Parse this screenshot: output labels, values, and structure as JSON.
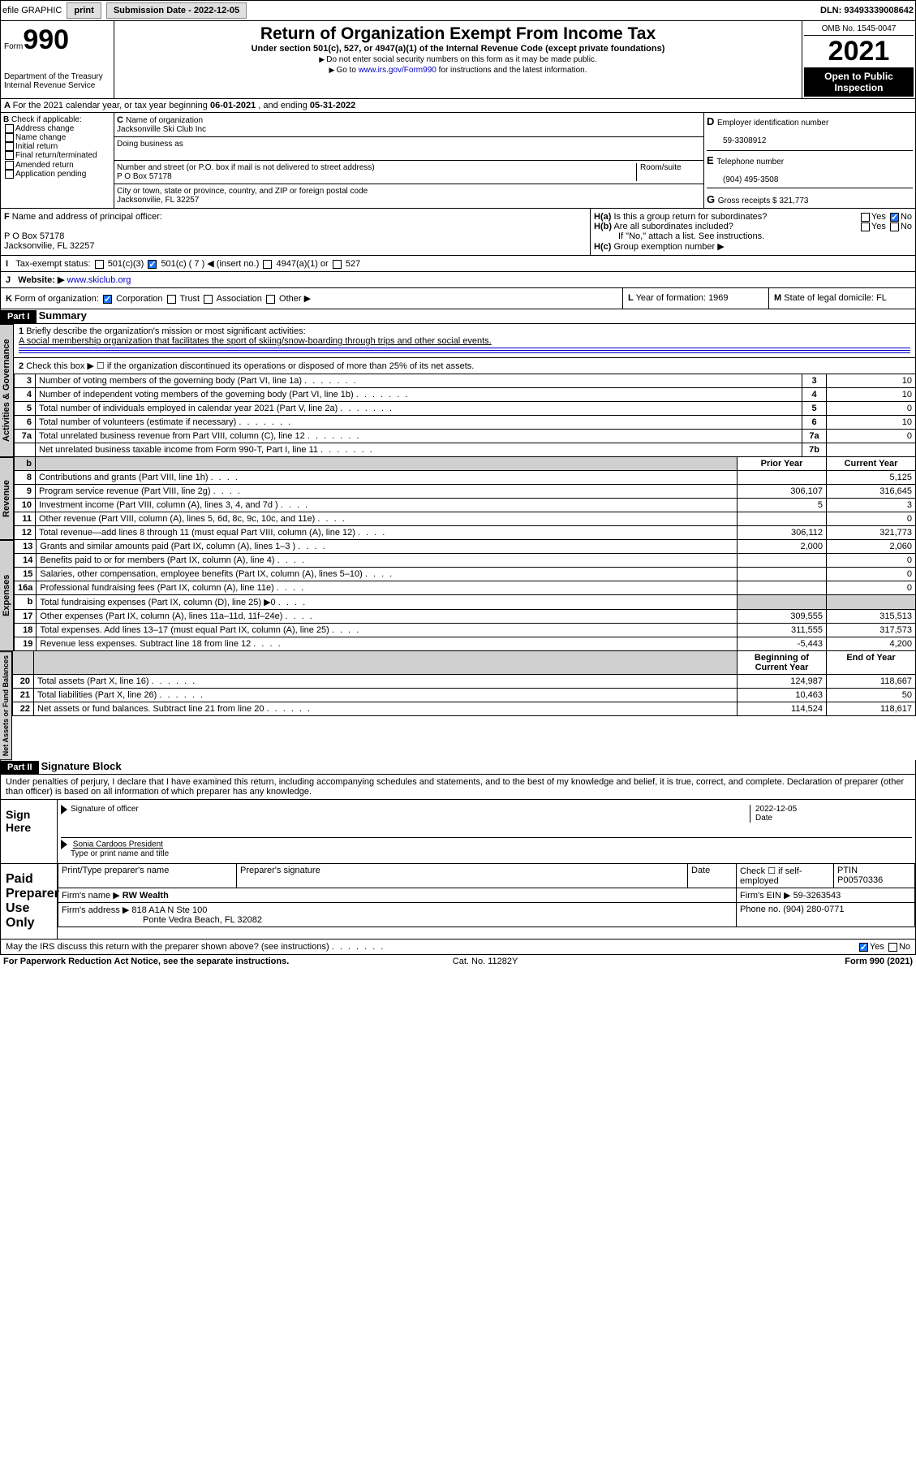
{
  "topbar": {
    "efile": "efile GRAPHIC",
    "print": "print",
    "subdate_label": "Submission Date - ",
    "subdate": "2022-12-05",
    "dln_label": "DLN: ",
    "dln": "93493339008642"
  },
  "header": {
    "form_prefix": "Form",
    "form_num": "990",
    "title": "Return of Organization Exempt From Income Tax",
    "subtitle": "Under section 501(c), 527, or 4947(a)(1) of the Internal Revenue Code (except private foundations)",
    "note1": "Do not enter social security numbers on this form as it may be made public.",
    "note2a": "Go to ",
    "note2_link": "www.irs.gov/Form990",
    "note2b": " for instructions and the latest information.",
    "dept": "Department of the Treasury Internal Revenue Service",
    "omb": "OMB No. 1545-0047",
    "year": "2021",
    "open": "Open to Public Inspection"
  },
  "A": {
    "text_a": "For the 2021 calendar year, or tax year beginning ",
    "begin": "06-01-2021",
    "text_b": " , and ending ",
    "end": "05-31-2022"
  },
  "B": {
    "label": "Check if applicable:",
    "items": [
      "Address change",
      "Name change",
      "Initial return",
      "Final return/terminated",
      "Amended return",
      "Application pending"
    ]
  },
  "C": {
    "name_label": "Name of organization",
    "name": "Jacksonville Ski Club Inc",
    "dba_label": "Doing business as",
    "dba": "",
    "street_label": "Number and street (or P.O. box if mail is not delivered to street address)",
    "room_label": "Room/suite",
    "street": "P O Box 57178",
    "city_label": "City or town, state or province, country, and ZIP or foreign postal code",
    "city": "Jacksonvilie, FL  32257"
  },
  "D": {
    "label": "Employer identification number",
    "val": "59-3308912"
  },
  "E": {
    "label": "Telephone number",
    "val": "(904) 495-3508"
  },
  "G": {
    "label": "Gross receipts $",
    "val": "321,773"
  },
  "F": {
    "label": "Name and address of principal officer:",
    "addr1": "P O Box 57178",
    "addr2": "Jacksonvilie, FL  32257"
  },
  "H": {
    "a": "Is this a group return for subordinates?",
    "b": "Are all subordinates included?",
    "b_note": "If \"No,\" attach a list. See instructions.",
    "c": "Group exemption number ▶",
    "yes": "Yes",
    "no": "No"
  },
  "I": {
    "label": "Tax-exempt status:",
    "o1": "501(c)(3)",
    "o2": "501(c) ( 7 ) ◀ (insert no.)",
    "o3": "4947(a)(1) or",
    "o4": "527"
  },
  "J": {
    "label": "Website: ▶",
    "val": "www.skiclub.org"
  },
  "K": {
    "label": "Form of organization:",
    "o1": "Corporation",
    "o2": "Trust",
    "o3": "Association",
    "o4": "Other ▶"
  },
  "L": {
    "label": "Year of formation:",
    "val": "1969"
  },
  "M": {
    "label": "State of legal domicile:",
    "val": "FL"
  },
  "part1": {
    "title": "Part I",
    "name": "Summary",
    "l1": "Briefly describe the organization's mission or most significant activities:",
    "l1v": "A social membership organization that facilitates the sport of skiing/snow-boarding through trips and other social events.",
    "l2": "Check this box ▶ ☐  if the organization discontinued its operations or disposed of more than 25% of its net assets.",
    "rows_gov": [
      {
        "n": "3",
        "t": "Number of voting members of the governing body (Part VI, line 1a)",
        "b": "3",
        "v": "10"
      },
      {
        "n": "4",
        "t": "Number of independent voting members of the governing body (Part VI, line 1b)",
        "b": "4",
        "v": "10"
      },
      {
        "n": "5",
        "t": "Total number of individuals employed in calendar year 2021 (Part V, line 2a)",
        "b": "5",
        "v": "0"
      },
      {
        "n": "6",
        "t": "Total number of volunteers (estimate if necessary)",
        "b": "6",
        "v": "10"
      },
      {
        "n": "7a",
        "t": "Total unrelated business revenue from Part VIII, column (C), line 12",
        "b": "7a",
        "v": "0"
      },
      {
        "n": "",
        "t": "Net unrelated business taxable income from Form 990-T, Part I, line 11",
        "b": "7b",
        "v": ""
      }
    ],
    "prior": "Prior Year",
    "current": "Current Year",
    "rows_rev": [
      {
        "n": "8",
        "t": "Contributions and grants (Part VIII, line 1h)",
        "p": "",
        "c": "5,125"
      },
      {
        "n": "9",
        "t": "Program service revenue (Part VIII, line 2g)",
        "p": "306,107",
        "c": "316,645"
      },
      {
        "n": "10",
        "t": "Investment income (Part VIII, column (A), lines 3, 4, and 7d )",
        "p": "5",
        "c": "3"
      },
      {
        "n": "11",
        "t": "Other revenue (Part VIII, column (A), lines 5, 6d, 8c, 9c, 10c, and 11e)",
        "p": "",
        "c": "0"
      },
      {
        "n": "12",
        "t": "Total revenue—add lines 8 through 11 (must equal Part VIII, column (A), line 12)",
        "p": "306,112",
        "c": "321,773"
      }
    ],
    "rows_exp": [
      {
        "n": "13",
        "t": "Grants and similar amounts paid (Part IX, column (A), lines 1–3 )",
        "p": "2,000",
        "c": "2,060"
      },
      {
        "n": "14",
        "t": "Benefits paid to or for members (Part IX, column (A), line 4)",
        "p": "",
        "c": "0"
      },
      {
        "n": "15",
        "t": "Salaries, other compensation, employee benefits (Part IX, column (A), lines 5–10)",
        "p": "",
        "c": "0"
      },
      {
        "n": "16a",
        "t": "Professional fundraising fees (Part IX, column (A), line 11e)",
        "p": "",
        "c": "0"
      },
      {
        "n": "b",
        "t": "Total fundraising expenses (Part IX, column (D), line 25) ▶0",
        "p": "__grey__",
        "c": "__grey__"
      },
      {
        "n": "17",
        "t": "Other expenses (Part IX, column (A), lines 11a–11d, 11f–24e)",
        "p": "309,555",
        "c": "315,513"
      },
      {
        "n": "18",
        "t": "Total expenses. Add lines 13–17 (must equal Part IX, column (A), line 25)",
        "p": "311,555",
        "c": "317,573"
      },
      {
        "n": "19",
        "t": "Revenue less expenses. Subtract line 18 from line 12",
        "p": "-5,443",
        "c": "4,200"
      }
    ],
    "beg": "Beginning of Current Year",
    "end": "End of Year",
    "rows_net": [
      {
        "n": "20",
        "t": "Total assets (Part X, line 16)",
        "p": "124,987",
        "c": "118,667"
      },
      {
        "n": "21",
        "t": "Total liabilities (Part X, line 26)",
        "p": "10,463",
        "c": "50"
      },
      {
        "n": "22",
        "t": "Net assets or fund balances. Subtract line 21 from line 20",
        "p": "114,524",
        "c": "118,617"
      }
    ],
    "vlabels": {
      "gov": "Activities & Governance",
      "rev": "Revenue",
      "exp": "Expenses",
      "net": "Net Assets or Fund Balances"
    }
  },
  "part2": {
    "title": "Part II",
    "name": "Signature Block",
    "decl": "Under penalties of perjury, I declare that I have examined this return, including accompanying schedules and statements, and to the best of my knowledge and belief, it is true, correct, and complete. Declaration of preparer (other than officer) is based on all information of which preparer has any knowledge.",
    "sign_here": "Sign Here",
    "sig_officer": "Signature of officer",
    "date": "Date",
    "date_v": "2022-12-05",
    "officer": "Sonia Cardoos  President",
    "officer_sub": "Type or print name and title",
    "paid": "Paid Preparer Use Only",
    "prep_name": "Print/Type preparer's name",
    "prep_sig": "Preparer's signature",
    "check": "Check ☐ if self-employed",
    "ptin_l": "PTIN",
    "ptin": "P00570336",
    "firm_name_l": "Firm's name   ▶",
    "firm_name": "RW Wealth",
    "firm_ein_l": "Firm's EIN ▶",
    "firm_ein": "59-3263543",
    "firm_addr_l": "Firm's address ▶",
    "firm_addr": "818 A1A N Ste 100",
    "firm_addr2": "Ponte Vedra Beach, FL  32082",
    "phone_l": "Phone no.",
    "phone": "(904) 280-0771",
    "discuss": "May the IRS discuss this return with the preparer shown above? (see instructions)"
  },
  "footer": {
    "l": "For Paperwork Reduction Act Notice, see the separate instructions.",
    "m": "Cat. No. 11282Y",
    "r": "Form 990 (2021)"
  }
}
